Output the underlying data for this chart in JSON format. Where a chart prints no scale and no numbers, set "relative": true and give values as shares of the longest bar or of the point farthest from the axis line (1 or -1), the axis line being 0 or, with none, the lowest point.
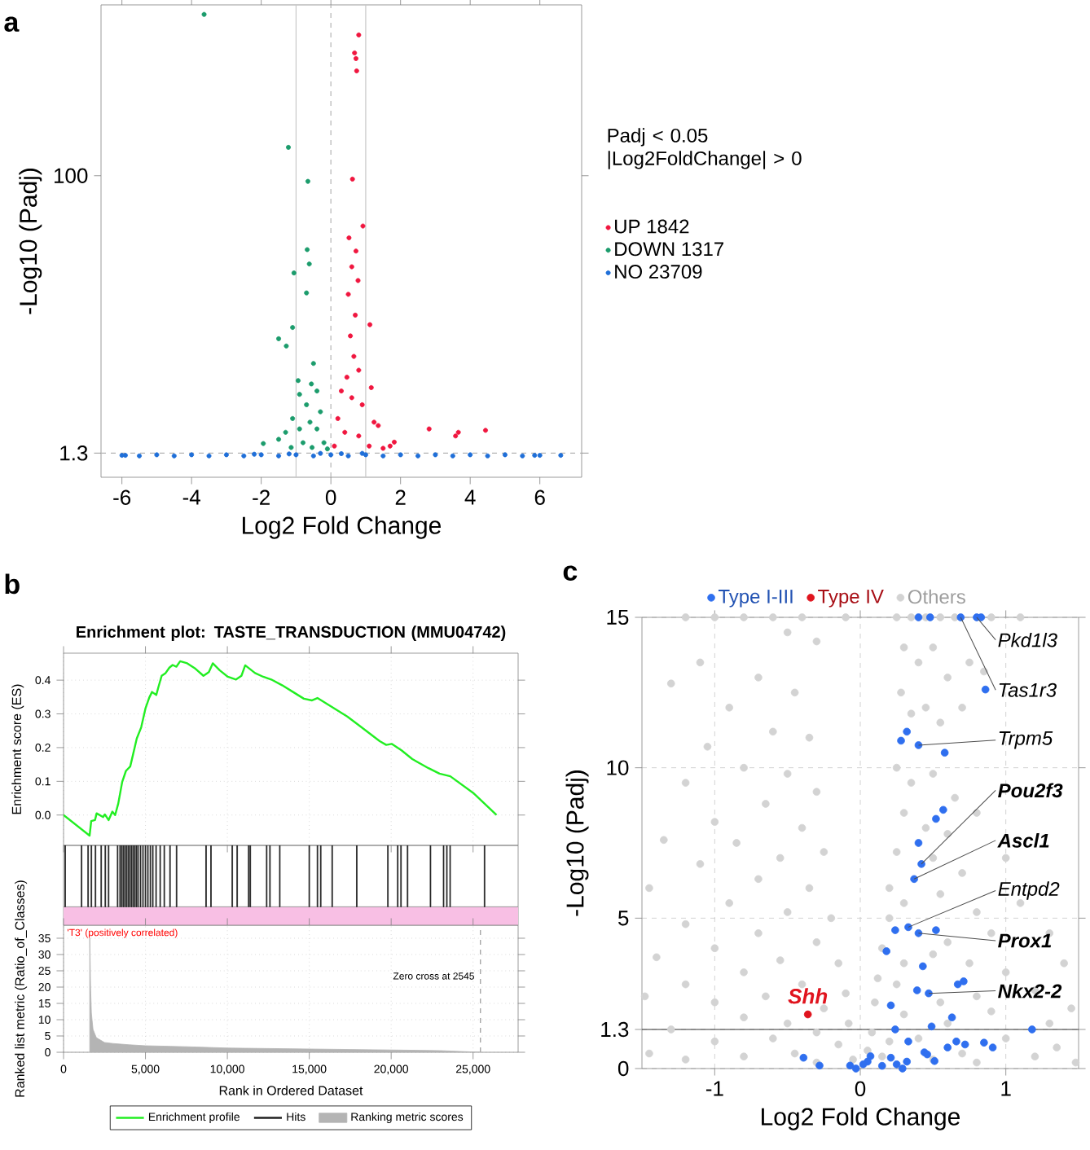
{
  "chart_data": [
    {
      "type": "scatter",
      "xlabel": "Log2 Fold Change",
      "ylabel": "-Log10 (Padj)",
      "xlim": [
        -6.6,
        7.2
      ],
      "ylim": [
        -7.3,
        160.8
      ],
      "xticks": [
        -6,
        -4,
        -2,
        0,
        2,
        4,
        6
      ],
      "yticks": [
        1.3,
        100
      ],
      "legend": "right",
      "legend_title": "Padj < 0.05 |Log2FoldChange| > 0",
      "marker": "circle",
      "annotations": [
        "a"
      ],
      "ref_lines": [
        {
          "axis": "x",
          "value": -1,
          "color": "#c8c8c8"
        },
        {
          "axis": "x",
          "value": 1,
          "color": "#c8c8c8"
        },
        {
          "axis": "x",
          "value": 0,
          "color": "#b4b4b4",
          "line_style": "dashed"
        },
        {
          "axis": "y",
          "value": 1.3,
          "color": "#b4b4b4",
          "line_style": "dashed"
        }
      ],
      "series": [
        {
          "name": "UP 1842",
          "color": "#f0163f",
          "x": [
            0.8,
            0.68,
            0.72,
            0.74,
            0.62,
            0.92,
            0.52,
            0.72,
            0.6,
            0.78,
            0.5,
            1.12,
            0.7,
            0.56,
            0.66,
            0.46,
            0.8,
            1.16,
            0.3,
            0.6,
            0.9,
            1.24,
            1.36,
            2.82,
            3.58,
            3.66,
            4.44,
            1.82,
            1.7,
            0.2,
            0.4,
            0.8,
            0.1,
            1.1,
            1.5
          ],
          "values": [
            150.1,
            143.7,
            141.7,
            137.3,
            98.8,
            82.1,
            77.9,
            73.2,
            67.6,
            62.7,
            57.8,
            47,
            50.4,
            43,
            35.7,
            28.3,
            30.8,
            24.6,
            23.4,
            21,
            18.5,
            12.3,
            11.1,
            9.9,
            7.4,
            8.7,
            9.4,
            5.2,
            3.8,
            13.6,
            8.7,
            7.4,
            3.8,
            3.8,
            3
          ]
        },
        {
          "name": "DOWN 1317",
          "color": "#1c9c6c",
          "x": [
            -3.64,
            -1.22,
            -0.66,
            -0.68,
            -0.62,
            -1.06,
            -0.7,
            -1.1,
            -1.5,
            -1.28,
            -0.94,
            -0.5,
            -0.56,
            -0.9,
            -0.4,
            -0.7,
            -0.3,
            -1.1,
            -0.6,
            -1.94,
            -1.5,
            -1.3,
            -0.9,
            -0.4,
            -0.8,
            -0.2,
            -1.14,
            -0.54,
            -0.1
          ],
          "values": [
            157.4,
            110.1,
            98,
            73.7,
            68.6,
            65.4,
            58.3,
            46,
            42,
            39.4,
            27.1,
            33.2,
            25.9,
            22.2,
            23.4,
            18.5,
            16,
            13.6,
            12.3,
            4.7,
            6.2,
            8.7,
            9.9,
            9.9,
            5,
            5,
            3.3,
            3.3,
            2.8
          ]
        },
        {
          "name": "NO 23709",
          "color": "#1f6fd8",
          "x": [
            -6,
            -5.9,
            -5.5,
            -5,
            -4.5,
            -4,
            -3.5,
            -3,
            -2.5,
            -2,
            -1.5,
            -1,
            -0.5,
            0,
            0.5,
            1,
            1.5,
            2,
            2.5,
            3,
            3.5,
            4,
            4.5,
            5,
            5.5,
            5.85,
            6,
            6.6,
            -0.3,
            0.3,
            -1.2,
            0.9,
            -2.2
          ],
          "values": [
            0.5,
            0.5,
            0.3,
            0.7,
            0.3,
            0.7,
            0.3,
            0.7,
            0.3,
            0.7,
            0.3,
            0.7,
            0.3,
            0.7,
            0.3,
            0.7,
            0.3,
            0.7,
            0.3,
            0.7,
            0.3,
            0.7,
            0.3,
            0.7,
            0.3,
            0.5,
            0.5,
            0.5,
            1.2,
            1.1,
            1,
            1.2,
            0.9
          ]
        }
      ]
    },
    {
      "type": "line",
      "title": "Enrichment plot: TASTE_TRANSDUCTION (MMU04742)",
      "ylabel": "Enrichment score (ES)",
      "xlim": [
        0,
        27750
      ],
      "ylim": [
        -0.09,
        0.48
      ],
      "xticks": [
        0,
        5000,
        10000,
        15000,
        20000,
        25000
      ],
      "yticks": [
        {
          "value": 0,
          "label": "0.0"
        },
        0.1,
        0.2,
        0.3,
        0.4
      ],
      "tick_labels": "y",
      "grid": true,
      "annotations": [
        "b"
      ],
      "series": [
        {
          "name": "Enrichment profile",
          "color": "#22ee22",
          "x": [
            0,
            1590,
            1690,
            1920,
            2020,
            2420,
            2520,
            2750,
            2980,
            3150,
            3340,
            3580,
            3810,
            4070,
            4240,
            4470,
            4740,
            5000,
            5230,
            5400,
            5660,
            5800,
            5990,
            6230,
            6460,
            6660,
            6890,
            7120,
            7550,
            8050,
            8540,
            8870,
            9110,
            9540,
            10030,
            10530,
            10860,
            11090,
            11690,
            12190,
            12680,
            13340,
            14010,
            14670,
            15170,
            15500,
            16160,
            17320,
            17980,
            19300,
            19700,
            20030,
            20630,
            21290,
            22280,
            22950,
            23610,
            25000,
            26430
          ],
          "values": [
            0,
            -0.061,
            -0.018,
            -0.015,
            0.005,
            -0.006,
            0.002,
            -0.015,
            0.01,
            0,
            0.034,
            0.098,
            0.131,
            0.144,
            0.179,
            0.227,
            0.26,
            0.316,
            0.348,
            0.365,
            0.356,
            0.381,
            0.413,
            0.421,
            0.437,
            0.445,
            0.44,
            0.456,
            0.45,
            0.434,
            0.413,
            0.424,
            0.45,
            0.429,
            0.41,
            0.402,
            0.413,
            0.444,
            0.421,
            0.41,
            0.402,
            0.385,
            0.365,
            0.345,
            0.34,
            0.347,
            0.327,
            0.292,
            0.268,
            0.219,
            0.208,
            0.211,
            0.192,
            0.166,
            0.139,
            0.123,
            0.115,
            0.066,
            0
          ]
        }
      ]
    },
    {
      "type": "bar",
      "relative": true,
      "xlim": [
        0,
        27750
      ],
      "tick_labels": false,
      "bands": [
        {
          "axis": "y",
          "from": -0.3,
          "to": 0,
          "color": "#f8bfe4"
        }
      ],
      "series": [
        {
          "name": "Hits",
          "color": "#202020",
          "x": [
            100,
            1100,
            1500,
            1700,
            1950,
            2300,
            2550,
            2750,
            3300,
            3450,
            3550,
            3650,
            3750,
            3850,
            3950,
            4050,
            4150,
            4250,
            4350,
            4450,
            4550,
            4700,
            4850,
            5000,
            5150,
            5300,
            5450,
            5650,
            5900,
            6150,
            6500,
            6900,
            8700,
            9000,
            10300,
            10600,
            11300,
            11400,
            12400,
            12600,
            13200,
            15000,
            15500,
            15700,
            16400,
            17900,
            19800,
            20400,
            20600,
            21000,
            22400,
            23200,
            23400,
            23600,
            25700
          ],
          "values": [
            1,
            1,
            1,
            1,
            1,
            1,
            1,
            1,
            1,
            1,
            1,
            1,
            1,
            1,
            1,
            1,
            1,
            1,
            1,
            1,
            1,
            1,
            1,
            1,
            1,
            1,
            1,
            1,
            1,
            1,
            1,
            1,
            1,
            1,
            1,
            1,
            1,
            1,
            1,
            1,
            1,
            1,
            1,
            1,
            1,
            1,
            1,
            1,
            1,
            1,
            1,
            1,
            1,
            1,
            1
          ]
        }
      ]
    },
    {
      "type": "area",
      "xlabel": "Rank in Ordered Dataset",
      "ylabel": "Ranked list metric (Ratio_of_Classes)",
      "xlim": [
        0,
        27750
      ],
      "ylim": [
        0,
        39
      ],
      "xticks": [
        0,
        {
          "value": 5000,
          "label": "5,000"
        },
        {
          "value": 10000,
          "label": "10,000"
        },
        {
          "value": 15000,
          "label": "15,000"
        },
        {
          "value": 20000,
          "label": "20,000"
        },
        {
          "value": 25000,
          "label": "25,000"
        }
      ],
      "yticks": [
        0,
        5,
        10,
        15,
        20,
        25,
        30,
        35
      ],
      "grid": true,
      "legend": "bottom",
      "annotations": [
        "'T3' (positively correlated)"
      ],
      "ref_lines": [
        {
          "axis": "x",
          "value": 25450,
          "label": "Zero cross at 2545",
          "color": "#999999",
          "line_style": "dashed"
        }
      ],
      "series": [
        {
          "name": "Ranking metric scores",
          "color": "#b4b4b4",
          "x": [
            1600,
            1650,
            1700,
            1800,
            2000,
            2500,
            3000,
            4000,
            5000,
            7500,
            10000,
            15000,
            20000,
            23000,
            25450
          ],
          "values": [
            35,
            20,
            12,
            7,
            4.5,
            3,
            2.7,
            2.3,
            2,
            1.7,
            1.3,
            1,
            0.7,
            0.5,
            0
          ]
        }
      ]
    },
    {
      "type": "scatter",
      "xlabel": "Log2 Fold Change",
      "ylabel": "-Log10 (Padj)",
      "xlim": [
        -1.5,
        1.5
      ],
      "ylim": [
        0,
        15
      ],
      "xticks": [
        -1,
        0,
        1
      ],
      "yticks": [
        0,
        1.3,
        5,
        10,
        15
      ],
      "grid": true,
      "legend": "top",
      "marker": "circle",
      "ref_lines": [
        {
          "axis": "y",
          "value": 1.3,
          "color": "#333333"
        }
      ],
      "annotations": [
        "c",
        {
          "text": "Pkd1l3",
          "x": 0.8,
          "y": 15
        },
        {
          "text": "Tas1r3",
          "x": 0.69,
          "y": 15
        },
        {
          "text": "Trpm5",
          "x": 0.4,
          "y": 10.75
        },
        {
          "text": "**Pou2f3**",
          "x": 0.42,
          "y": 6.8
        },
        {
          "text": "**Ascl1**",
          "x": 0.37,
          "y": 6.3
        },
        {
          "text": "Entpd2",
          "x": 0.33,
          "y": 4.7
        },
        {
          "text": "**Prox1**",
          "x": 0.4,
          "y": 4.5
        },
        {
          "text": "**Nkx2-2**",
          "x": 0.47,
          "y": 2.5
        },
        {
          "text": "**Shh**",
          "x": -0.36,
          "y": 1.8
        }
      ],
      "series": [
        {
          "name": "Type I-III",
          "color": "#2f6fef",
          "x": [
            0.4,
            0.48,
            0.69,
            0.8,
            0.83,
            0.86,
            0.32,
            0.28,
            0.4,
            0.58,
            0.57,
            0.52,
            0.4,
            0.42,
            0.37,
            0.33,
            0.24,
            0.4,
            0.52,
            0.18,
            0.43,
            0.71,
            0.67,
            0.39,
            0.47,
            0.21,
            0.63,
            0.49,
            0.24,
            1.18,
            0.33,
            0.66,
            0.72,
            0.85,
            0.91,
            0.6,
            0.44,
            0.46,
            0.51,
            0.21,
            0.32,
            0.29,
            0.25,
            0.15,
            0.07,
            0.05,
            0.02,
            -0.07,
            -0.03,
            -0.28,
            -0.39
          ],
          "values": [
            15,
            15,
            15,
            15,
            15,
            12.6,
            11.2,
            10.9,
            10.75,
            10.5,
            8.6,
            8.3,
            7.5,
            6.8,
            6.3,
            4.7,
            4.6,
            4.5,
            4.6,
            3.9,
            3.4,
            2.9,
            2.8,
            2.6,
            2.5,
            2.1,
            1.7,
            1.4,
            1.3,
            1.3,
            0.9,
            0.9,
            0.8,
            0.86,
            0.7,
            0.7,
            0.54,
            0.47,
            0.25,
            0.36,
            0.23,
            0,
            0.14,
            0.09,
            0.41,
            0.23,
            0.14,
            0.1,
            0,
            0.1,
            0.36
          ]
        },
        {
          "name": "Type IV",
          "color": "#e0141e",
          "x": [
            -0.36
          ],
          "values": [
            1.8
          ]
        },
        {
          "name": "Others",
          "color": "#d3d3d3",
          "x": [
            0.25,
            0.35,
            0.45,
            0.55,
            0.65,
            0.9,
            1.1,
            0.3,
            0.4,
            0.5,
            0.6,
            0.75,
            0.28,
            0.45,
            0.55,
            0.35,
            0.7,
            0.85,
            0.25,
            0.35,
            0.5,
            0.65,
            0.3,
            0.45,
            0.6,
            0.8,
            0.25,
            0.5,
            0.7,
            1.0,
            0.2,
            0.3,
            0.55,
            0.8,
            1.1,
            0.2,
            0.6,
            0.9,
            1.3,
            0.15,
            0.3,
            0.5,
            0.75,
            1.0,
            1.4,
            0.12,
            0.25,
            0.55,
            0.8,
            1.2,
            1.45,
            0.1,
            0.3,
            0.6,
            0.9,
            1.3,
            0.08,
            0.2,
            0.4,
            0.7,
            1.0,
            1.35,
            0.05,
            0.15,
            0.5,
            0.8,
            1.2,
            1.48,
            -0.1,
            -0.4,
            -0.6,
            -0.8,
            -1.0,
            -1.2,
            -0.5,
            -0.3,
            -1.1,
            -0.7,
            -1.3,
            -0.45,
            -0.9,
            -0.6,
            -0.35,
            -1.05,
            -0.8,
            -0.5,
            -1.2,
            -0.3,
            -0.65,
            -1.0,
            -0.4,
            -0.85,
            -1.35,
            -0.55,
            -0.25,
            -1.1,
            -0.7,
            -0.35,
            -1.45,
            -0.9,
            -0.5,
            -0.2,
            -1.2,
            -0.7,
            -0.3,
            -1.0,
            -1.4,
            -0.55,
            -0.15,
            -0.8,
            -1.2,
            -0.4,
            -0.1,
            -0.65,
            -1.0,
            -1.48,
            -0.25,
            -0.8,
            -0.5,
            -0.08,
            -1.3,
            -0.3,
            -0.6,
            -1.0,
            -0.15,
            -0.45,
            -0.8,
            -1.2,
            -0.05,
            -0.3,
            -1.45
          ],
          "values": [
            15,
            15,
            15,
            15,
            15,
            15,
            15,
            14,
            13.5,
            14,
            13,
            13.5,
            12.5,
            12,
            11.5,
            11.8,
            12,
            13.2,
            10,
            9.5,
            9.8,
            9,
            8.5,
            8,
            7.8,
            8.5,
            7.2,
            7,
            6.5,
            7,
            6,
            5.5,
            5.8,
            5.2,
            5.5,
            5,
            4.2,
            4.5,
            4.5,
            4,
            3.5,
            3.8,
            3.5,
            3.2,
            3.5,
            3,
            2.8,
            2.2,
            2.4,
            2.6,
            2,
            2.2,
            1.8,
            1.5,
            1.9,
            1.5,
            1.2,
            0.9,
            1,
            0.5,
            1,
            0.7,
            0.6,
            0.4,
            0.3,
            0.2,
            0.4,
            0.2,
            15,
            15,
            15,
            15,
            15,
            15,
            14.5,
            14.2,
            13.5,
            13,
            12.8,
            12.5,
            12,
            11.2,
            11,
            10.7,
            10,
            9.8,
            9.5,
            9.2,
            8.8,
            8.2,
            8,
            7.5,
            7.6,
            7,
            7.2,
            6.8,
            6.3,
            6,
            6,
            5.5,
            5.2,
            5,
            4.8,
            4.5,
            4.2,
            4,
            3.7,
            3.6,
            3.5,
            3.2,
            2.8,
            2.8,
            2.5,
            2.4,
            2.2,
            2.4,
            2,
            1.7,
            1.5,
            1.5,
            1.3,
            1.2,
            1,
            0.9,
            0.8,
            0.5,
            0.4,
            0.3,
            0.3,
            0.2,
            0.5
          ]
        }
      ]
    }
  ]
}
